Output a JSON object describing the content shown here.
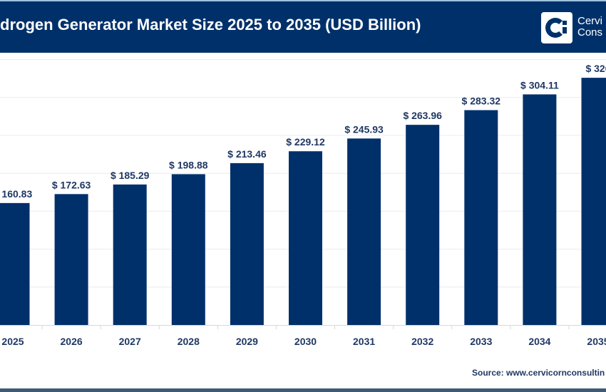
{
  "header": {
    "title": "drogen Generator Market Size 2025 to 2035 (USD Billion)",
    "logo_line1": "Cervi",
    "logo_line2": "Cons"
  },
  "source": "Source: www.cervicornconsultin",
  "colors": {
    "bar": "#00306a",
    "header": "#00306a",
    "label": "#1f3864"
  },
  "chart_data": {
    "type": "bar",
    "title": "drogen Generator Market Size 2025 to 2035 (USD Billion)",
    "categories": [
      "2025",
      "2026",
      "2027",
      "2028",
      "2029",
      "2030",
      "2031",
      "2032",
      "2033",
      "2034",
      "2035"
    ],
    "values": [
      160.83,
      172.63,
      185.29,
      198.88,
      213.46,
      229.12,
      245.93,
      263.96,
      283.32,
      304.11,
      326
    ],
    "data_labels": [
      "$ 160.83",
      "$ 172.63",
      "$ 185.29",
      "$ 198.88",
      "$ 213.46",
      "$ 229.12",
      "$ 245.93",
      "$ 263.96",
      "$ 283.32",
      "$ 304.11",
      "$ 326"
    ],
    "tick_labels": [
      "2025",
      "2026",
      "2027",
      "2028",
      "2029",
      "2030",
      "2031",
      "2032",
      "2033",
      "2034",
      "2035"
    ],
    "ylim": [
      0,
      350
    ],
    "grid": true,
    "legend": "none"
  }
}
